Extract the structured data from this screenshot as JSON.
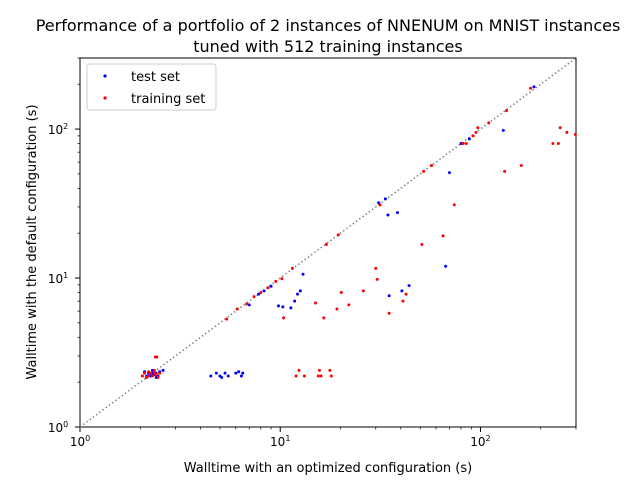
{
  "chart_data": {
    "type": "scatter",
    "title_line1": "Performance of a portfolio of 2 instances of NNENUM on MNIST instances",
    "title_line2": "tuned with 512 training instances",
    "xlabel": "Walltime with an optimized configuration (s)",
    "ylabel": "Walltime with the default configuration (s)",
    "xscale": "log",
    "yscale": "log",
    "xlim": [
      1,
      300
    ],
    "ylim": [
      1,
      300
    ],
    "grid": false,
    "legend_position": "top-left",
    "diagonal": {
      "style": "dotted",
      "color": "#808080"
    },
    "x_ticks": [
      {
        "value": 1,
        "label": "10",
        "exp": "0"
      },
      {
        "value": 10,
        "label": "10",
        "exp": "1"
      },
      {
        "value": 100,
        "label": "10",
        "exp": "2"
      }
    ],
    "y_ticks": [
      {
        "value": 1,
        "label": "10",
        "exp": "0"
      },
      {
        "value": 10,
        "label": "10",
        "exp": "1"
      },
      {
        "value": 100,
        "label": "10",
        "exp": "2"
      }
    ],
    "series": [
      {
        "name": "test set",
        "color": "#0000ff",
        "points": [
          [
            2.1,
            2.35
          ],
          [
            2.2,
            2.3
          ],
          [
            2.25,
            2.2
          ],
          [
            2.3,
            2.4
          ],
          [
            2.35,
            2.25
          ],
          [
            2.4,
            2.3
          ],
          [
            2.45,
            2.2
          ],
          [
            2.5,
            2.35
          ],
          [
            2.6,
            2.4
          ],
          [
            2.15,
            2.2
          ],
          [
            2.3,
            2.3
          ],
          [
            2.4,
            2.15
          ],
          [
            4.5,
            2.2
          ],
          [
            4.8,
            2.3
          ],
          [
            5.0,
            2.2
          ],
          [
            5.1,
            2.15
          ],
          [
            5.3,
            2.3
          ],
          [
            5.5,
            2.2
          ],
          [
            6.0,
            2.3
          ],
          [
            6.2,
            2.35
          ],
          [
            6.4,
            2.2
          ],
          [
            6.5,
            2.3
          ],
          [
            7.0,
            6.6
          ],
          [
            7.8,
            7.8
          ],
          [
            8.3,
            8.2
          ],
          [
            9.0,
            8.8
          ],
          [
            9.8,
            6.5
          ],
          [
            10.3,
            6.4
          ],
          [
            11.3,
            6.3
          ],
          [
            11.8,
            7.0
          ],
          [
            12.2,
            7.8
          ],
          [
            12.6,
            8.2
          ],
          [
            13.0,
            10.6
          ],
          [
            31.0,
            32.0
          ],
          [
            33.5,
            34.0
          ],
          [
            34.5,
            26.5
          ],
          [
            35.0,
            7.6
          ],
          [
            38.5,
            27.5
          ],
          [
            40.5,
            8.2
          ],
          [
            44.0,
            8.9
          ],
          [
            67.0,
            12.0
          ],
          [
            70.0,
            51.0
          ],
          [
            80.0,
            80.0
          ],
          [
            88.0,
            86.0
          ],
          [
            130.0,
            98.0
          ],
          [
            185.0,
            192.0
          ]
        ]
      },
      {
        "name": "training set",
        "color": "#ff0000",
        "points": [
          [
            2.05,
            2.2
          ],
          [
            2.1,
            2.3
          ],
          [
            2.15,
            2.15
          ],
          [
            2.2,
            2.35
          ],
          [
            2.25,
            2.3
          ],
          [
            2.3,
            2.2
          ],
          [
            2.35,
            2.4
          ],
          [
            2.4,
            2.25
          ],
          [
            2.45,
            2.15
          ],
          [
            2.5,
            2.3
          ],
          [
            2.2,
            2.2
          ],
          [
            2.35,
            2.3
          ],
          [
            2.38,
            2.95
          ],
          [
            2.42,
            2.95
          ],
          [
            5.4,
            5.3
          ],
          [
            6.1,
            6.2
          ],
          [
            6.8,
            6.7
          ],
          [
            7.4,
            7.5
          ],
          [
            8.0,
            8.0
          ],
          [
            8.7,
            8.6
          ],
          [
            9.5,
            9.5
          ],
          [
            10.2,
            9.9
          ],
          [
            10.4,
            5.4
          ],
          [
            11.5,
            11.6
          ],
          [
            12.0,
            2.2
          ],
          [
            12.4,
            2.4
          ],
          [
            13.2,
            2.2
          ],
          [
            15.0,
            6.8
          ],
          [
            15.5,
            2.2
          ],
          [
            15.7,
            2.4
          ],
          [
            16.0,
            2.2
          ],
          [
            16.5,
            5.4
          ],
          [
            17.0,
            16.8
          ],
          [
            17.7,
            2.4
          ],
          [
            18.0,
            2.2
          ],
          [
            19.2,
            6.2
          ],
          [
            19.5,
            19.5
          ],
          [
            20.2,
            8.0
          ],
          [
            22.0,
            6.6
          ],
          [
            26.0,
            8.2
          ],
          [
            30.0,
            11.6
          ],
          [
            30.5,
            9.8
          ],
          [
            31.5,
            31.0
          ],
          [
            35.0,
            5.8
          ],
          [
            41.0,
            7.0
          ],
          [
            42.5,
            7.8
          ],
          [
            51.0,
            16.8
          ],
          [
            52.0,
            52.0
          ],
          [
            57.0,
            57.0
          ],
          [
            65.0,
            19.2
          ],
          [
            74.0,
            31.0
          ],
          [
            82.0,
            80.0
          ],
          [
            85.0,
            80.0
          ],
          [
            92.0,
            90.0
          ],
          [
            95.0,
            95.0
          ],
          [
            97.0,
            102.0
          ],
          [
            110.0,
            110.0
          ],
          [
            132.0,
            52.0
          ],
          [
            135.0,
            133.0
          ],
          [
            160.0,
            57.0
          ],
          [
            178.0,
            188.0
          ],
          [
            230.0,
            80.0
          ],
          [
            245.0,
            80.0
          ],
          [
            250.0,
            102.0
          ],
          [
            270.0,
            95.0
          ],
          [
            298.0,
            92.0
          ]
        ]
      }
    ]
  }
}
